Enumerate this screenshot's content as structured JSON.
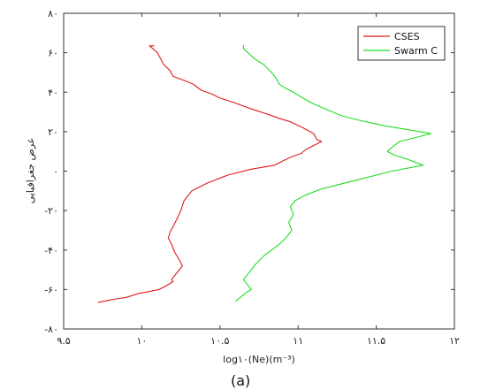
{
  "chart_data": {
    "type": "line",
    "xlabel": "log۱۰(Ne)(m⁻³)",
    "ylabel": "عرض جغرافیایی",
    "xlim": [
      9.5,
      12
    ],
    "ylim": [
      -80,
      80
    ],
    "x_ticks": [
      {
        "value": 9.5,
        "label": "۹.۵"
      },
      {
        "value": 10,
        "label": "۱۰"
      },
      {
        "value": 10.5,
        "label": "۱۰.۵"
      },
      {
        "value": 11,
        "label": "۱۱"
      },
      {
        "value": 11.5,
        "label": "۱۱.۵"
      },
      {
        "value": 12,
        "label": "۱۲"
      }
    ],
    "y_ticks": [
      {
        "value": 80,
        "label": "۸۰"
      },
      {
        "value": 60,
        "label": "۶۰"
      },
      {
        "value": 40,
        "label": "۴۰"
      },
      {
        "value": 20,
        "label": "۲۰"
      },
      {
        "value": 0,
        "label": "۰"
      },
      {
        "value": -20,
        "label": "-۲۰"
      },
      {
        "value": -40,
        "label": "-۴۰"
      },
      {
        "value": -60,
        "label": "-۶۰"
      },
      {
        "value": -80,
        "label": "-۸۰"
      }
    ],
    "legend_position": "top-right",
    "series": [
      {
        "name": "CSES",
        "color": "#e01b1b",
        "x": [
          10.08,
          10.05,
          10.1,
          10.12,
          10.14,
          10.18,
          10.2,
          10.27,
          10.33,
          10.38,
          10.45,
          10.5,
          10.58,
          10.65,
          10.72,
          10.8,
          10.87,
          10.95,
          11.03,
          11.1,
          11.12,
          11.15,
          11.1,
          11.05,
          11.02,
          10.95,
          10.9,
          10.85,
          10.7,
          10.55,
          10.42,
          10.32,
          10.27,
          10.25,
          10.22,
          10.2,
          10.18,
          10.17,
          10.19,
          10.21,
          10.24,
          10.26,
          10.22,
          10.19,
          10.2,
          10.16,
          10.11,
          10.05,
          9.98,
          9.9,
          9.82,
          9.72
        ],
        "y": [
          63.5,
          63.5,
          60,
          57,
          54,
          51,
          48,
          46,
          44,
          41,
          39,
          37,
          35,
          33,
          31,
          29,
          27,
          25,
          22,
          19,
          16,
          15,
          13,
          11,
          9,
          7,
          5,
          3,
          1,
          -2,
          -6,
          -10,
          -15,
          -20,
          -25,
          -28,
          -31,
          -34,
          -37,
          -41,
          -45,
          -48,
          -52,
          -55,
          -56,
          -58,
          -60,
          -61,
          -62,
          -64,
          -65,
          -66.5
        ]
      },
      {
        "name": "Swarm C",
        "color": "#22dd22",
        "x": [
          10.65,
          10.65,
          10.68,
          10.72,
          10.78,
          10.83,
          10.86,
          10.88,
          10.92,
          10.97,
          11.03,
          11.1,
          11.16,
          11.22,
          11.28,
          11.38,
          11.55,
          11.7,
          11.85,
          11.65,
          11.6,
          11.57,
          11.62,
          11.7,
          11.8,
          11.6,
          11.35,
          11.15,
          11.05,
          10.98,
          10.95,
          10.97,
          10.94,
          10.96,
          10.92,
          10.88,
          10.83,
          10.78,
          10.73,
          10.7,
          10.67,
          10.65,
          10.67,
          10.7,
          10.66,
          10.63,
          10.6
        ],
        "y": [
          64,
          62,
          60,
          57,
          54,
          50,
          47,
          44,
          42,
          40,
          37,
          34,
          32,
          30,
          28,
          26,
          23,
          21,
          19,
          15,
          12,
          10,
          8,
          6,
          3,
          0,
          -5,
          -9,
          -12,
          -15,
          -18,
          -22,
          -26,
          -30,
          -34,
          -37,
          -40,
          -43,
          -47,
          -50,
          -53,
          -55,
          -57,
          -60,
          -62,
          -64,
          -66
        ]
      }
    ]
  },
  "panel_label": "(a)"
}
